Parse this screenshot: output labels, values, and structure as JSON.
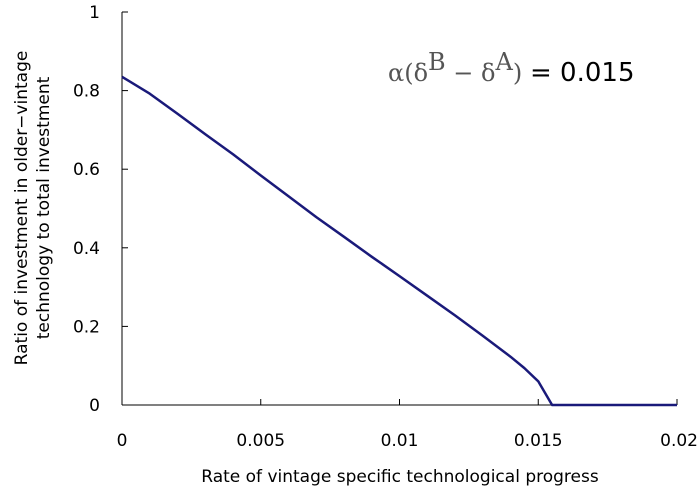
{
  "chart_data": {
    "type": "line",
    "xlabel": "Rate of vintage specific technological progress",
    "ylabel_line1": "Ratio of investment in older−vintage",
    "ylabel_line2": "technology to total investment",
    "xlim": [
      0,
      0.02
    ],
    "ylim": [
      0,
      1
    ],
    "x_ticks": [
      {
        "value": 0,
        "label": "0"
      },
      {
        "value": 0.005,
        "label": "0.005"
      },
      {
        "value": 0.01,
        "label": "0.01"
      },
      {
        "value": 0.015,
        "label": "0.015"
      },
      {
        "value": 0.02,
        "label": "0.02"
      }
    ],
    "y_ticks": [
      {
        "value": 0,
        "label": "0"
      },
      {
        "value": 0.2,
        "label": "0.2"
      },
      {
        "value": 0.4,
        "label": "0.4"
      },
      {
        "value": 0.6,
        "label": "0.6"
      },
      {
        "value": 0.8,
        "label": "0.8"
      },
      {
        "value": 1,
        "label": "1"
      }
    ],
    "grid": false,
    "annotation": {
      "math": "α(δ",
      "sup_b": "B",
      "minus": " − δ",
      "sup_a": "A",
      "close": ")",
      "value": "= 0.015"
    },
    "series": [
      {
        "color": "#1a1a7a",
        "x": [
          0,
          0.001,
          0.002,
          0.003,
          0.004,
          0.005,
          0.006,
          0.007,
          0.008,
          0.009,
          0.01,
          0.011,
          0.012,
          0.013,
          0.014,
          0.0145,
          0.015,
          0.0155,
          0.016,
          0.017,
          0.018,
          0.019,
          0.02
        ],
        "y": [
          0.835,
          0.792,
          0.741,
          0.689,
          0.638,
          0.584,
          0.531,
          0.478,
          0.428,
          0.377,
          0.328,
          0.278,
          0.228,
          0.176,
          0.123,
          0.094,
          0.06,
          0,
          0,
          0,
          0,
          0,
          0
        ]
      }
    ]
  }
}
